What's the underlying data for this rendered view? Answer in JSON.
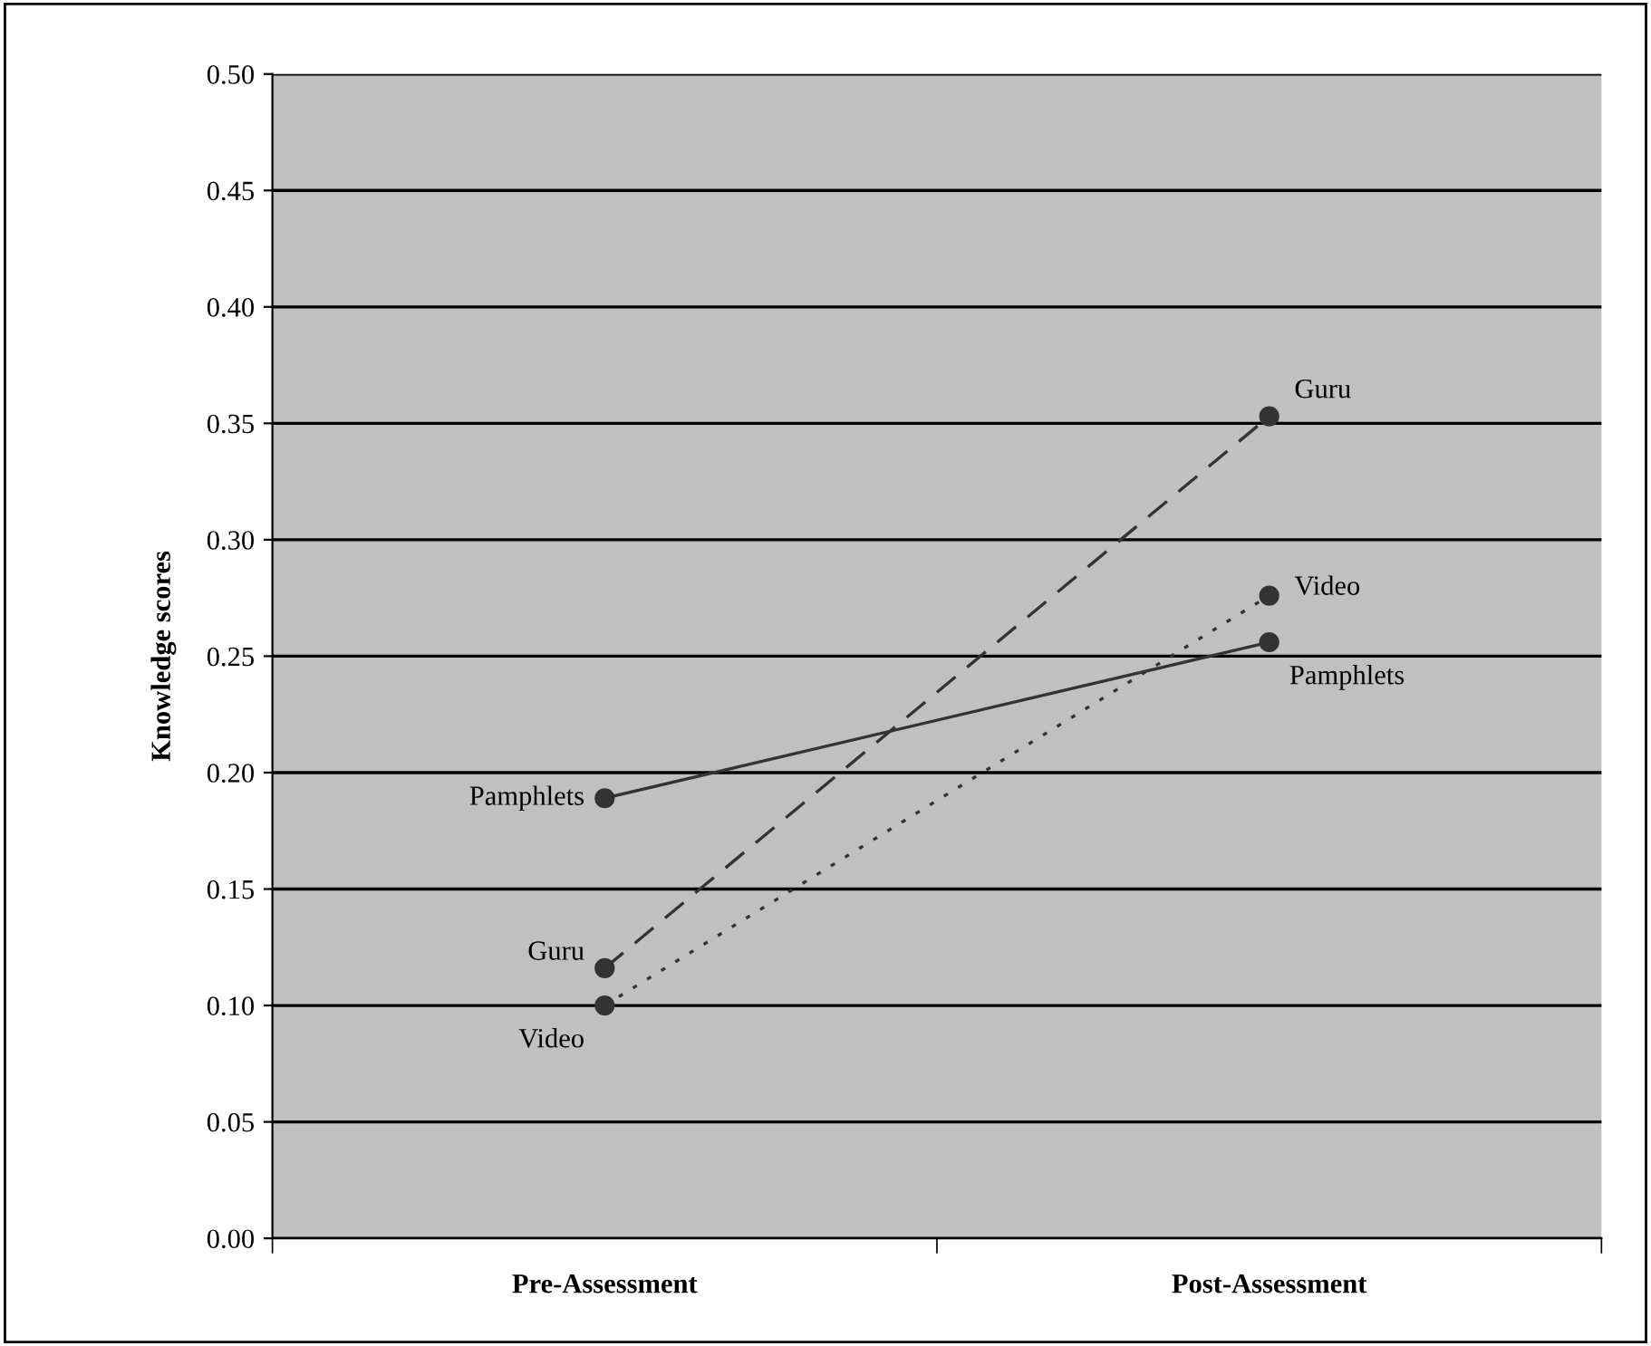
{
  "chart_data": {
    "type": "line",
    "ylabel": "Knowledge scores",
    "categories": [
      "Pre-Assessment",
      "Post-Assessment"
    ],
    "series": [
      {
        "name": "Pamphlets",
        "color": "#333333",
        "line_style": "solid",
        "values": [
          0.189,
          0.256
        ]
      },
      {
        "name": "Guru",
        "color": "#333333",
        "line_style": "dashed",
        "values": [
          0.116,
          0.353
        ]
      },
      {
        "name": "Video",
        "color": "#333333",
        "line_style": "dotted",
        "values": [
          0.1,
          0.276
        ]
      }
    ],
    "ylim": [
      0,
      0.5
    ],
    "yticks": [
      {
        "value": 0,
        "label": "0.00"
      },
      {
        "value": 0.05,
        "label": "0.05"
      },
      {
        "value": 0.1,
        "label": "0.10"
      },
      {
        "value": 0.15,
        "label": "0.15"
      },
      {
        "value": 0.2,
        "label": "0.20"
      },
      {
        "value": 0.25,
        "label": "0.25"
      },
      {
        "value": 0.3,
        "label": "0.30"
      },
      {
        "value": 0.35,
        "label": "0.35"
      },
      {
        "value": 0.4,
        "label": "0.40"
      },
      {
        "value": 0.45,
        "label": "0.45"
      },
      {
        "value": 0.5,
        "label": "0.50"
      }
    ],
    "grid": "y",
    "legend": false,
    "marker": "circle"
  }
}
